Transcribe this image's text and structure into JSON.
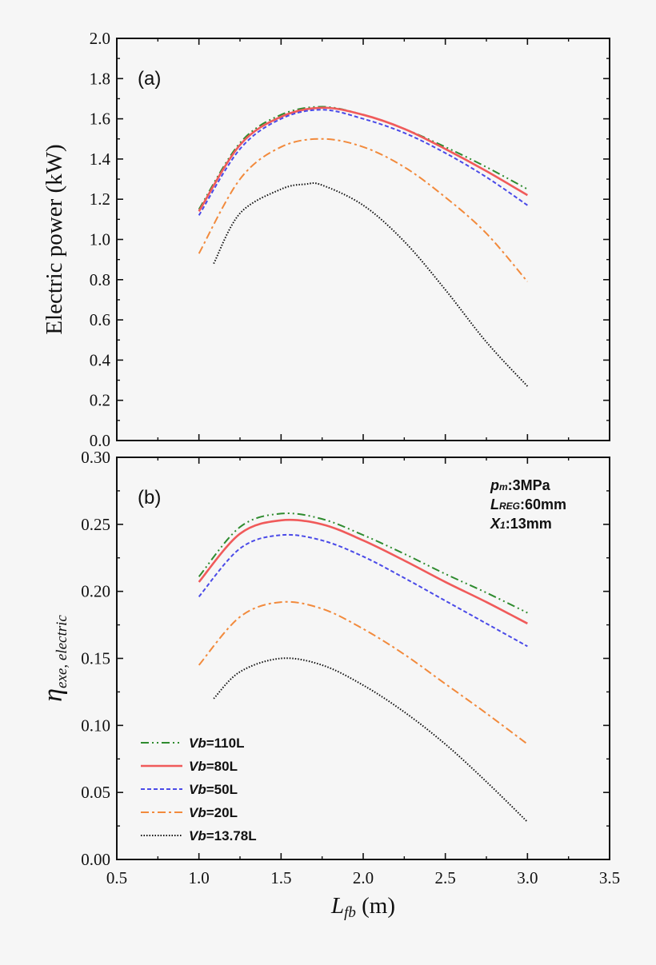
{
  "chart_data": [
    {
      "type": "line",
      "panel_label": "(a)",
      "ylabel": "Electric power (kW)",
      "xlim": [
        0.5,
        3.5
      ],
      "ylim": [
        0.0,
        2.0
      ],
      "yticks": [
        "0.0",
        "0.2",
        "0.4",
        "0.6",
        "0.8",
        "1.0",
        "1.2",
        "1.4",
        "1.6",
        "1.8",
        "2.0"
      ],
      "grid": false,
      "series": [
        {
          "name": "Vb=110L",
          "color": "#2e8b2e",
          "dash": "10,4,2,4,2,4",
          "x": [
            1.0,
            1.25,
            1.5,
            1.75,
            2.0,
            2.25,
            2.5,
            2.75,
            3.0
          ],
          "y": [
            1.15,
            1.48,
            1.62,
            1.66,
            1.62,
            1.55,
            1.46,
            1.36,
            1.25
          ]
        },
        {
          "name": "Vb=80L",
          "color": "#f05a5a",
          "dash": "",
          "x": [
            1.0,
            1.25,
            1.5,
            1.75,
            2.0,
            2.25,
            2.5,
            2.75,
            3.0
          ],
          "y": [
            1.14,
            1.47,
            1.61,
            1.655,
            1.62,
            1.55,
            1.45,
            1.34,
            1.22
          ]
        },
        {
          "name": "Vb=50L",
          "color": "#4a4ae8",
          "dash": "5,3",
          "x": [
            1.0,
            1.25,
            1.5,
            1.75,
            2.0,
            2.25,
            2.5,
            2.75,
            3.0
          ],
          "y": [
            1.12,
            1.45,
            1.6,
            1.645,
            1.6,
            1.53,
            1.43,
            1.31,
            1.17
          ]
        },
        {
          "name": "Vb=20L",
          "color": "#f28a3c",
          "dash": "10,4,3,4",
          "x": [
            1.0,
            1.25,
            1.5,
            1.75,
            2.0,
            2.25,
            2.5,
            2.75,
            3.0
          ],
          "y": [
            0.93,
            1.3,
            1.46,
            1.5,
            1.46,
            1.36,
            1.21,
            1.03,
            0.79
          ]
        },
        {
          "name": "Vb=13.78L",
          "color": "#111111",
          "dash": "1.5,2",
          "x": [
            1.09,
            1.25,
            1.5,
            1.65,
            1.75,
            2.0,
            2.25,
            2.5,
            2.75,
            3.0
          ],
          "y": [
            0.88,
            1.13,
            1.25,
            1.275,
            1.27,
            1.17,
            0.99,
            0.75,
            0.49,
            0.27
          ]
        }
      ]
    },
    {
      "type": "line",
      "panel_label": "(b)",
      "ylabel": "η",
      "ylabel_sub": "exe, electric",
      "xlabel": "L",
      "xlabel_sub": "fb",
      "xlabel_unit": " (m)",
      "xlim": [
        0.5,
        3.5
      ],
      "ylim": [
        0.0,
        0.3
      ],
      "xticks": [
        "0.5",
        "1.0",
        "1.5",
        "2.0",
        "2.5",
        "3.0",
        "3.5"
      ],
      "yticks": [
        "0.00",
        "0.05",
        "0.10",
        "0.15",
        "0.20",
        "0.25",
        "0.30"
      ],
      "grid": false,
      "legend_position": "bottom-left",
      "annotations": [
        {
          "main": "p",
          "sub": "m",
          "rest": ":3MPa"
        },
        {
          "main": "L",
          "sub": "REG",
          "rest": ":60mm"
        },
        {
          "main": "X",
          "sub": "1",
          "rest": ":13mm"
        }
      ],
      "series": [
        {
          "name": "Vb=110L",
          "label_main": "V",
          "label_sub": "b",
          "label_rest": "=110L",
          "color": "#2e8b2e",
          "dash": "10,4,2,4,2,4",
          "x": [
            1.0,
            1.25,
            1.5,
            1.75,
            2.0,
            2.25,
            2.5,
            2.75,
            3.0
          ],
          "y": [
            0.211,
            0.248,
            0.258,
            0.254,
            0.242,
            0.228,
            0.213,
            0.199,
            0.184
          ]
        },
        {
          "name": "Vb=80L",
          "label_main": "V",
          "label_sub": "b",
          "label_rest": "=80L",
          "color": "#f05a5a",
          "dash": "",
          "x": [
            1.0,
            1.25,
            1.5,
            1.75,
            2.0,
            2.25,
            2.5,
            2.75,
            3.0
          ],
          "y": [
            0.207,
            0.243,
            0.253,
            0.25,
            0.238,
            0.223,
            0.207,
            0.192,
            0.176
          ]
        },
        {
          "name": "Vb=50L",
          "label_main": "V",
          "label_sub": "b",
          "label_rest": "=50L",
          "color": "#4a4ae8",
          "dash": "5,3",
          "x": [
            1.0,
            1.25,
            1.5,
            1.75,
            2.0,
            2.25,
            2.5,
            2.75,
            3.0
          ],
          "y": [
            0.196,
            0.232,
            0.242,
            0.238,
            0.226,
            0.21,
            0.193,
            0.176,
            0.159
          ]
        },
        {
          "name": "Vb=20L",
          "label_main": "V",
          "label_sub": "b",
          "label_rest": "=20L",
          "color": "#f28a3c",
          "dash": "10,4,3,4",
          "x": [
            1.0,
            1.25,
            1.5,
            1.75,
            2.0,
            2.25,
            2.5,
            2.75,
            3.0
          ],
          "y": [
            0.145,
            0.181,
            0.192,
            0.187,
            0.172,
            0.153,
            0.131,
            0.109,
            0.086
          ]
        },
        {
          "name": "Vb=13.78L",
          "label_main": "V",
          "label_sub": "b",
          "label_rest": "=13.78L",
          "color": "#111111",
          "dash": "1.5,2",
          "x": [
            1.09,
            1.25,
            1.5,
            1.75,
            2.0,
            2.25,
            2.5,
            2.75,
            3.0
          ],
          "y": [
            0.12,
            0.14,
            0.15,
            0.145,
            0.13,
            0.11,
            0.086,
            0.058,
            0.028
          ]
        }
      ]
    }
  ]
}
